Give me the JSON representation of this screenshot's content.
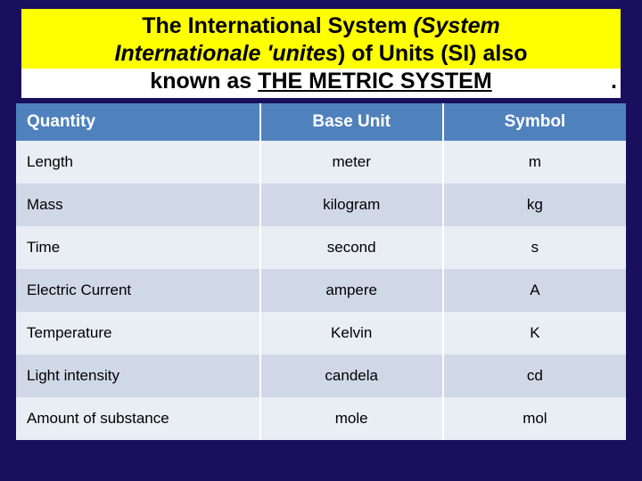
{
  "title": {
    "line1_plain_a": "The International System ",
    "line1_italic": "(System",
    "line2_italic": "Internationale 'unites",
    "line2_plain": ") of Units (SI) also",
    "line3_a": "known as ",
    "line3_underline": "THE METRIC SYSTEM",
    "trailing_period": "."
  },
  "table": {
    "header": {
      "quantity": "Quantity",
      "base_unit": "Base Unit",
      "symbol": "Symbol"
    },
    "header_bg": "#4f81bd",
    "header_fg": "#ffffff",
    "row_odd_bg": "#e9edf4",
    "row_even_bg": "#d0d8e8",
    "column_widths_pct": [
      40,
      30,
      30
    ],
    "rows": [
      {
        "quantity": "Length",
        "base_unit": "meter",
        "symbol": "m"
      },
      {
        "quantity": "Mass",
        "base_unit": "kilogram",
        "symbol": "kg"
      },
      {
        "quantity": "Time",
        "base_unit": "second",
        "symbol": "s"
      },
      {
        "quantity": "Electric Current",
        "base_unit": "ampere",
        "symbol": "A"
      },
      {
        "quantity": "Temperature",
        "base_unit": "Kelvin",
        "symbol": "K"
      },
      {
        "quantity": "Light intensity",
        "base_unit": "candela",
        "symbol": "cd"
      },
      {
        "quantity": "Amount of substance",
        "base_unit": "mole",
        "symbol": "mol"
      }
    ]
  },
  "colors": {
    "page_bg": "#1a0f5c",
    "title_bg": "#ffff00",
    "line3_bg": "#ffffff"
  }
}
